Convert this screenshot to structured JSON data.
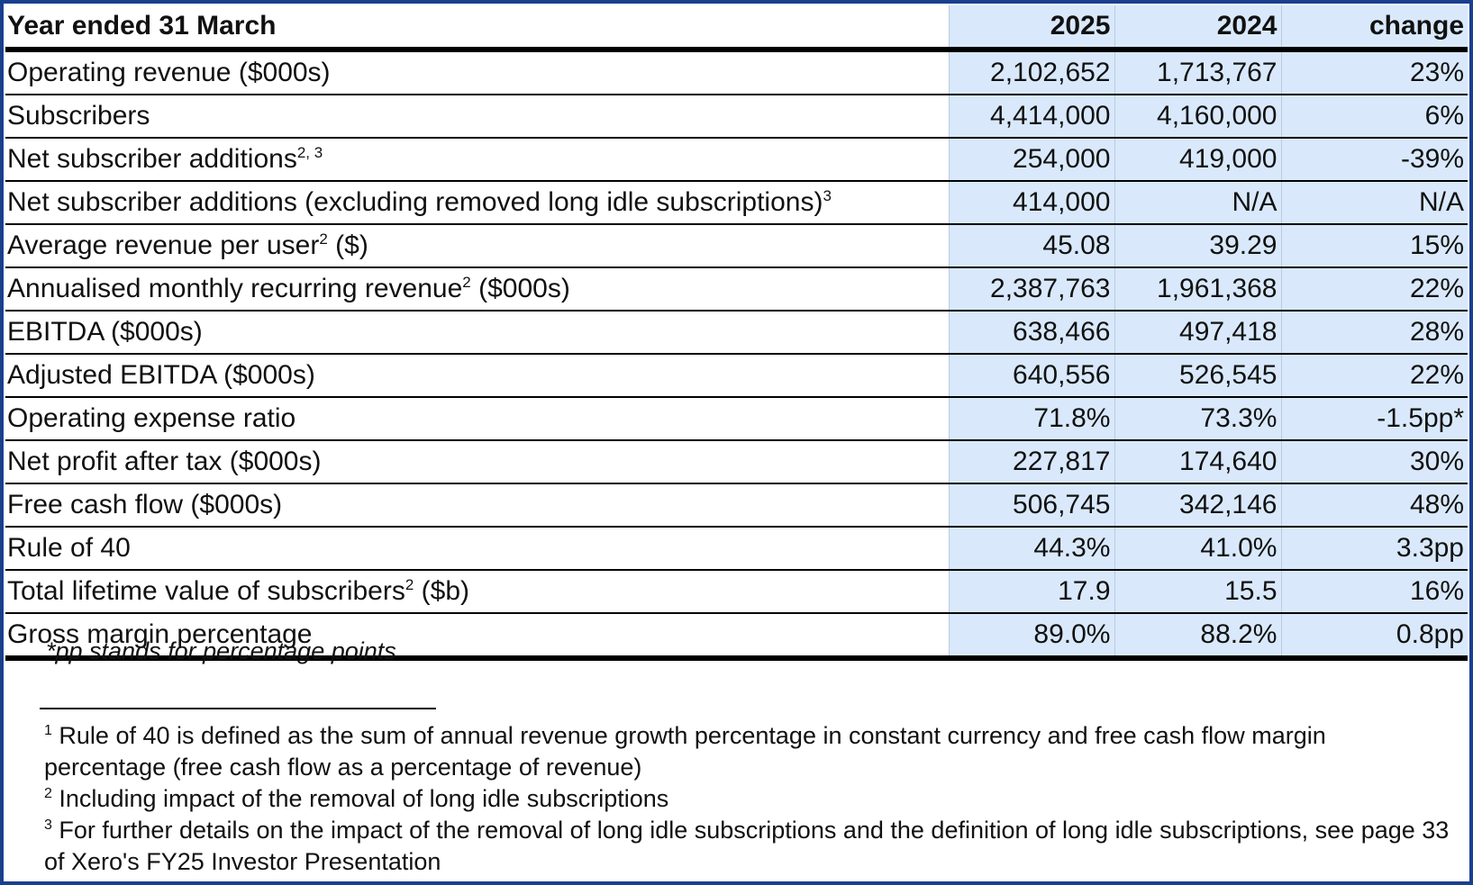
{
  "table": {
    "header": {
      "label": "Year ended 31 March",
      "col_2025": "2025",
      "col_2024": "2024",
      "col_change": "change"
    },
    "rows": [
      {
        "label": "Operating revenue ($000s)",
        "sup": "",
        "suffix": "",
        "v2025": "2,102,652",
        "v2024": "1,713,767",
        "change": "23%"
      },
      {
        "label": "Subscribers",
        "sup": "",
        "suffix": "",
        "v2025": "4,414,000",
        "v2024": "4,160,000",
        "change": "6%"
      },
      {
        "label": "Net subscriber additions",
        "sup": "2, 3",
        "suffix": "",
        "v2025": "254,000",
        "v2024": "419,000",
        "change": "-39%"
      },
      {
        "label": "Net subscriber additions (excluding removed long idle subscriptions)",
        "sup": "3",
        "suffix": "",
        "v2025": "414,000",
        "v2024": "N/A",
        "change": "N/A"
      },
      {
        "label": "Average revenue per user",
        "sup": "2",
        "suffix": " ($)",
        "v2025": "45.08",
        "v2024": "39.29",
        "change": "15%"
      },
      {
        "label": "Annualised monthly recurring revenue",
        "sup": "2",
        "suffix": " ($000s)",
        "v2025": "2,387,763",
        "v2024": "1,961,368",
        "change": "22%"
      },
      {
        "label": "EBITDA ($000s)",
        "sup": "",
        "suffix": "",
        "v2025": "638,466",
        "v2024": "497,418",
        "change": "28%"
      },
      {
        "label": "Adjusted EBITDA ($000s)",
        "sup": "",
        "suffix": "",
        "v2025": "640,556",
        "v2024": "526,545",
        "change": "22%"
      },
      {
        "label": "Operating expense ratio",
        "sup": "",
        "suffix": "",
        "v2025": "71.8%",
        "v2024": "73.3%",
        "change": "-1.5pp*"
      },
      {
        "label": "Net profit after tax ($000s)",
        "sup": "",
        "suffix": "",
        "v2025": "227,817",
        "v2024": "174,640",
        "change": "30%"
      },
      {
        "label": "Free cash flow ($000s)",
        "sup": "",
        "suffix": "",
        "v2025": "506,745",
        "v2024": "342,146",
        "change": "48%"
      },
      {
        "label": "Rule of 40",
        "sup": "",
        "suffix": "",
        "v2025": "44.3%",
        "v2024": "41.0%",
        "change": "3.3pp"
      },
      {
        "label": "Total lifetime value of subscribers",
        "sup": "2",
        "suffix": " ($b)",
        "v2025": "17.9",
        "v2024": "15.5",
        "change": "16%"
      },
      {
        "label": "Gross margin percentage",
        "sup": "",
        "suffix": "",
        "v2025": "89.0%",
        "v2024": "88.2%",
        "change": "0.8pp"
      }
    ]
  },
  "notes": {
    "pp": "*pp stands for percentage points",
    "footnotes": [
      {
        "num": "1",
        "text": " Rule of 40 is defined as the sum of annual revenue growth percentage in constant currency and free cash flow margin percentage (free cash flow as a percentage of revenue)"
      },
      {
        "num": "2",
        "text": " Including impact of the removal of long idle subscriptions"
      },
      {
        "num": "3",
        "text": " For further details on the impact of the removal of long idle subscriptions and the definition of long idle subscriptions, see page 33 of Xero's FY25 Investor Presentation"
      }
    ]
  },
  "colors": {
    "frame_border": "#1a3f8f",
    "shade": "#d9e9fb",
    "rule": "#000000"
  }
}
